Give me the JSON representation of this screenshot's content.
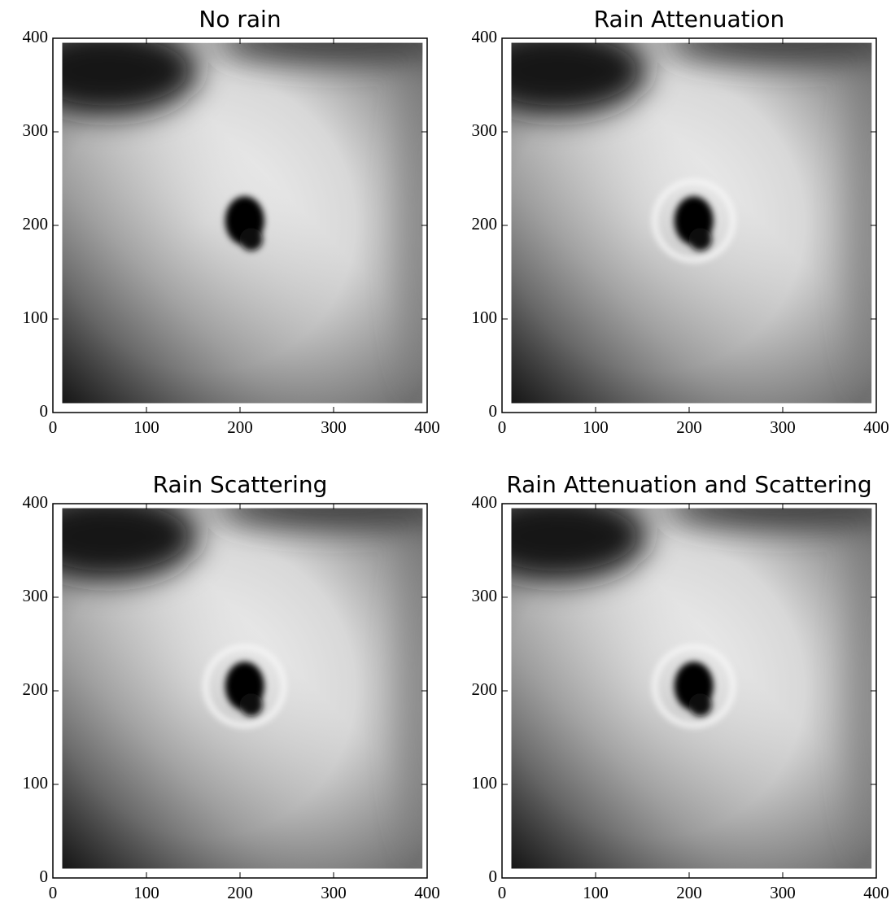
{
  "chart_data": [
    {
      "type": "image",
      "title": "No rain",
      "xlim": [
        0,
        400
      ],
      "ylim": [
        0,
        400
      ],
      "xticks": [
        0,
        100,
        200,
        300,
        400
      ],
      "yticks": [
        0,
        100,
        200,
        300,
        400
      ]
    },
    {
      "type": "image",
      "title": "Rain Attenuation",
      "xlim": [
        0,
        400
      ],
      "ylim": [
        0,
        400
      ],
      "xticks": [
        0,
        100,
        200,
        300,
        400
      ],
      "yticks": [
        0,
        100,
        200,
        300,
        400
      ]
    },
    {
      "type": "image",
      "title": "Rain Scattering",
      "xlim": [
        0,
        400
      ],
      "ylim": [
        0,
        400
      ],
      "xticks": [
        0,
        100,
        200,
        300,
        400
      ],
      "yticks": [
        0,
        100,
        200,
        300,
        400
      ]
    },
    {
      "type": "image",
      "title": "Rain Attenuation and Scattering",
      "xlim": [
        0,
        400
      ],
      "ylim": [
        0,
        400
      ],
      "xticks": [
        0,
        100,
        200,
        300,
        400
      ],
      "yticks": [
        0,
        100,
        200,
        300,
        400
      ]
    }
  ]
}
